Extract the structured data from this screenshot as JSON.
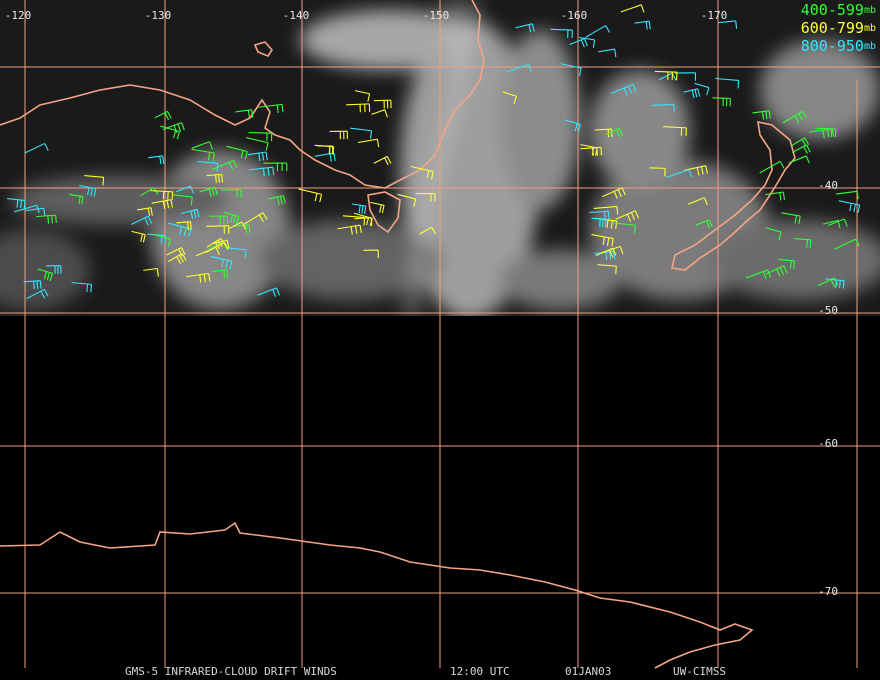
{
  "map": {
    "longitude_labels": [
      "-120",
      "-130",
      "-140",
      "-150",
      "-160",
      "-170"
    ],
    "latitude_labels": [
      "-40",
      "-50",
      "-60",
      "-70"
    ],
    "legend": [
      {
        "range": "400-599",
        "unit": "mb",
        "color": "#33ff33"
      },
      {
        "range": "600-799",
        "unit": "mb",
        "color": "#ffff33"
      },
      {
        "range": "800-950",
        "unit": "mb",
        "color": "#33e6ff"
      }
    ],
    "footer": [
      "GMS-5 INFRARED-CLOUD DRIFT WINDS",
      "12:00 UTC",
      "01JAN03",
      "UW-CIMSS"
    ]
  }
}
